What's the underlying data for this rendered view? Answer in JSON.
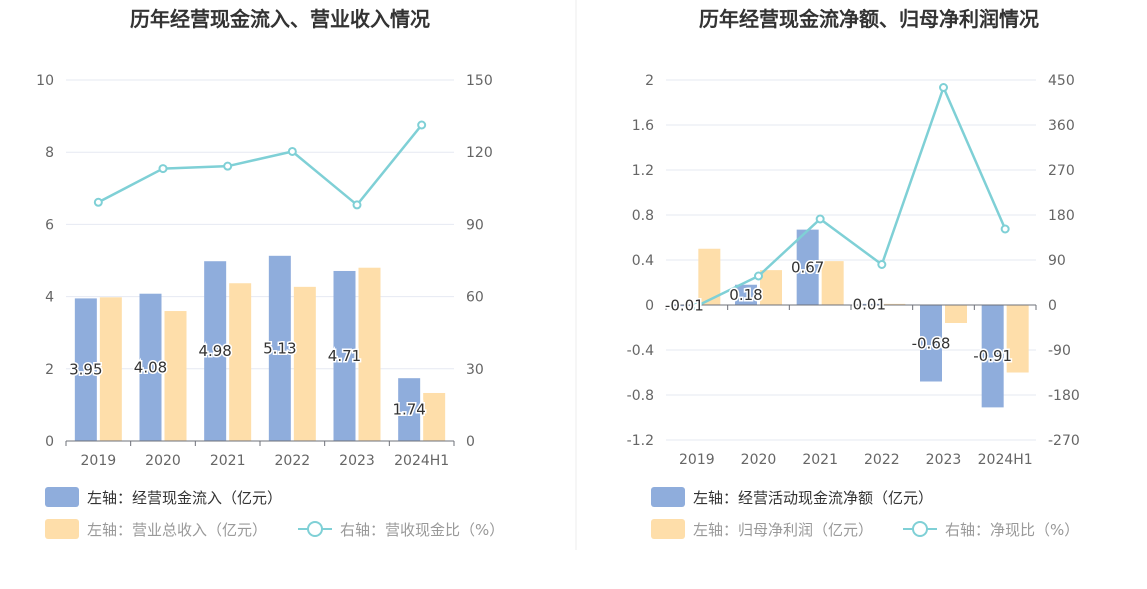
{
  "charts": [
    {
      "title": "历年经营现金流入、营业收入情况",
      "legend": [
        {
          "label": "左轴：经营现金流入（亿元）",
          "kind": "bar",
          "color": "#8faddc"
        },
        {
          "label": "左轴：营业总收入（亿元）",
          "kind": "bar",
          "color": "#fedeaa"
        },
        {
          "label": "右轴：营收现金比（%）",
          "kind": "line",
          "color": "#7fd0d6"
        }
      ]
    },
    {
      "title": "历年经营现金流净额、归母净利润情况",
      "legend": [
        {
          "label": "左轴：经营活动现金流净额（亿元）",
          "kind": "bar",
          "color": "#8faddc"
        },
        {
          "label": "左轴：归母净利润（亿元）",
          "kind": "bar",
          "color": "#fedeaa"
        },
        {
          "label": "右轴：净现比（%）",
          "kind": "line",
          "color": "#7fd0d6"
        }
      ]
    }
  ],
  "chart_data": [
    {
      "type": "bar",
      "title": "历年经营现金流入、营业收入情况",
      "categories": [
        "2019",
        "2020",
        "2021",
        "2022",
        "2023",
        "2024H1"
      ],
      "left_axis": {
        "ticks": [
          "0",
          "2",
          "4",
          "6",
          "8",
          "10"
        ],
        "range": [
          0,
          10
        ]
      },
      "right_axis": {
        "ticks": [
          "0",
          "30",
          "60",
          "90",
          "120",
          "150"
        ],
        "range": [
          0,
          150
        ]
      },
      "grid": true,
      "series": [
        {
          "name": "左轴：经营现金流入（亿元）",
          "type": "bar",
          "axis": "left",
          "color": "#8faddc",
          "values": [
            3.95,
            4.08,
            4.98,
            5.13,
            4.71,
            1.74
          ],
          "labels": [
            "3.95",
            "4.08",
            "4.98",
            "5.13",
            "4.71",
            "1.74"
          ]
        },
        {
          "name": "左轴：营业总收入（亿元）",
          "type": "bar",
          "axis": "left",
          "color": "#fedeaa",
          "values": [
            3.98,
            3.6,
            4.37,
            4.27,
            4.8,
            1.33
          ]
        },
        {
          "name": "右轴：营收现金比（%）",
          "type": "line",
          "axis": "right",
          "color": "#7fd0d6",
          "values": [
            99.2,
            113.2,
            114.2,
            120.3,
            98.1,
            131.3
          ]
        }
      ]
    },
    {
      "type": "bar",
      "title": "历年经营现金流净额、归母净利润情况",
      "categories": [
        "2019",
        "2020",
        "2021",
        "2022",
        "2023",
        "2024H1"
      ],
      "left_axis": {
        "ticks": [
          "-1.2",
          "-0.8",
          "-0.4",
          "0",
          "0.4",
          "0.8",
          "1.2",
          "1.6",
          "2"
        ],
        "range": [
          -1.2,
          2
        ]
      },
      "right_axis": {
        "ticks": [
          "-270",
          "-180",
          "-90",
          "0",
          "90",
          "180",
          "270",
          "360",
          "450"
        ],
        "range": [
          -270,
          450
        ]
      },
      "grid": true,
      "series": [
        {
          "name": "左轴：经营活动现金流净额（亿元）",
          "type": "bar",
          "axis": "left",
          "color": "#8faddc",
          "values": [
            -0.01,
            0.18,
            0.67,
            0.01,
            -0.68,
            -0.91
          ],
          "labels": [
            "-0.01",
            "0.18",
            "0.67",
            "0.01",
            "-0.68",
            "-0.91"
          ]
        },
        {
          "name": "左轴：归母净利润（亿元）",
          "type": "bar",
          "axis": "left",
          "color": "#fedeaa",
          "values": [
            0.5,
            0.31,
            0.39,
            0.01,
            -0.16,
            -0.6
          ]
        },
        {
          "name": "右轴：净现比（%）",
          "type": "line",
          "axis": "right",
          "color": "#7fd0d6",
          "values": [
            -2,
            58,
            172,
            81,
            435,
            152
          ]
        }
      ]
    }
  ]
}
